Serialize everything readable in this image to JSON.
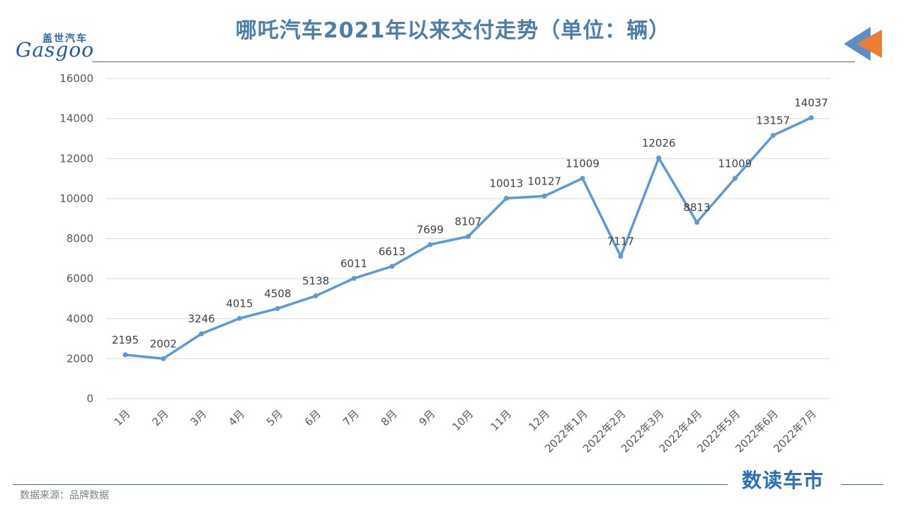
{
  "header": {
    "title": "哪吒汽车2021年以来交付走势（单位：辆）",
    "logo_cn": "盖世汽车",
    "logo_en": "Gasgoo"
  },
  "footer": {
    "source": "数据来源：品牌数据",
    "brand": "数读车市"
  },
  "colors": {
    "line": "#5b9bd5",
    "title": "#4d7ea8",
    "grid": "#d9d9d9",
    "arrow_blue": "#5b8fc9",
    "arrow_orange": "#ed7d31"
  },
  "chart_data": {
    "type": "line",
    "title": "哪吒汽车2021年以来交付走势（单位：辆）",
    "categories": [
      "1月",
      "2月",
      "3月",
      "4月",
      "5月",
      "6月",
      "7月",
      "8月",
      "9月",
      "10月",
      "11月",
      "12月",
      "2022年1月",
      "2022年2月",
      "2022年3月",
      "2022年4月",
      "2022年5月",
      "2022年6月",
      "2022年7月"
    ],
    "values": [
      2195,
      2002,
      3246,
      4015,
      4508,
      5138,
      6011,
      6613,
      7699,
      8107,
      10013,
      10127,
      11009,
      7117,
      12026,
      8813,
      11009,
      13157,
      14037
    ],
    "ylim": [
      0,
      16000
    ],
    "yticks": [
      0,
      2000,
      4000,
      6000,
      8000,
      10000,
      12000,
      14000,
      16000
    ],
    "grid": true,
    "data_labels": true
  }
}
